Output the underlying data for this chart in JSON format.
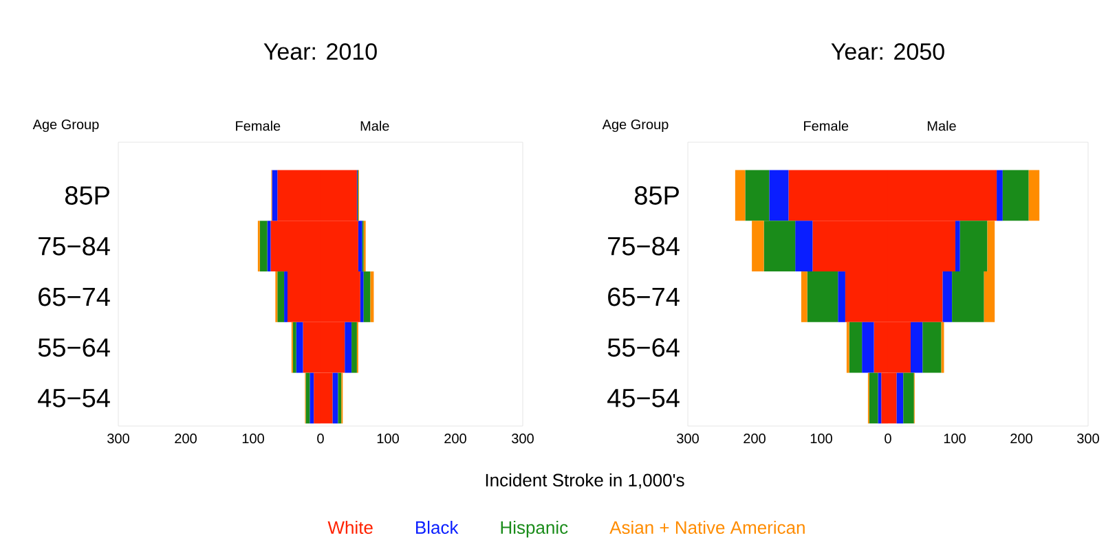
{
  "chart_data": [
    {
      "type": "bar",
      "orientation": "horizontal",
      "stacked": true,
      "title": "Year: 2010",
      "ylabel": "Age Group",
      "xlabel": "Incident Stroke in 1,000's",
      "annotations": [
        "Female",
        "Male"
      ],
      "legend": "bottom",
      "categories": [
        "85P",
        "75−84",
        "65−74",
        "55−64",
        "45−54"
      ],
      "xlim": [
        -300,
        300
      ],
      "xticks": [
        {
          "value": -300,
          "label": "300"
        },
        {
          "value": -200,
          "label": "200"
        },
        {
          "value": -100,
          "label": "100"
        },
        0,
        100,
        200,
        300
      ],
      "series": [
        {
          "name": "White",
          "color": "#ff2200",
          "values": [
            -64,
            -74,
            -49,
            -26,
            -10
          ]
        },
        {
          "name": "Black",
          "color": "#0a1eff",
          "values": [
            -8,
            -5,
            -5,
            -10,
            -6
          ]
        },
        {
          "name": "Hispanic",
          "color": "#1a8c1a",
          "values": [
            null,
            -11,
            -10,
            -5,
            -6
          ]
        },
        {
          "name": "Asian + Native American",
          "color": "#ff8c00",
          "values": [
            -1,
            -3,
            -3,
            -2,
            -1
          ]
        },
        {
          "color": "#ff2200",
          "values": [
            54,
            56,
            59,
            36,
            18
          ]
        },
        {
          "color": "#0a1eff",
          "values": [
            1,
            6,
            5,
            10,
            8
          ]
        },
        {
          "color": "#1a8c1a",
          "values": [
            1,
            2,
            10,
            8,
            5
          ]
        },
        {
          "color": "#ff8c00",
          "values": [
            1,
            3,
            5,
            2,
            2
          ]
        }
      ]
    },
    {
      "type": "bar",
      "orientation": "horizontal",
      "stacked": true,
      "title": "Year: 2050",
      "ylabel": "Age Group",
      "annotations": [
        "Female",
        "Male"
      ],
      "categories": [
        "85P",
        "75−84",
        "65−74",
        "55−64",
        "45−54"
      ],
      "xlim": [
        -300,
        300
      ],
      "xticks": [
        {
          "value": -300,
          "label": "300"
        },
        {
          "value": -200,
          "label": "200"
        },
        {
          "value": -100,
          "label": "100"
        },
        0,
        100,
        200,
        300
      ],
      "series": [
        {
          "color": "#ff2200",
          "values": [
            -149,
            -113,
            -64,
            -21,
            -10
          ]
        },
        {
          "color": "#0a1eff",
          "values": [
            -29,
            -26,
            -11,
            -18,
            -5
          ]
        },
        {
          "color": "#1a8c1a",
          "values": [
            -36,
            -47,
            -46,
            -19,
            -13
          ]
        },
        {
          "color": "#ff8c00",
          "values": [
            -15,
            -18,
            -9,
            -4,
            -2
          ]
        },
        {
          "color": "#ff2200",
          "values": [
            163,
            101,
            82,
            34,
            13
          ]
        },
        {
          "color": "#0a1eff",
          "values": [
            9,
            7,
            14,
            18,
            10
          ]
        },
        {
          "color": "#1a8c1a",
          "values": [
            39,
            41,
            48,
            28,
            16
          ]
        },
        {
          "color": "#ff8c00",
          "values": [
            16,
            11,
            16,
            4,
            1
          ]
        }
      ]
    }
  ]
}
